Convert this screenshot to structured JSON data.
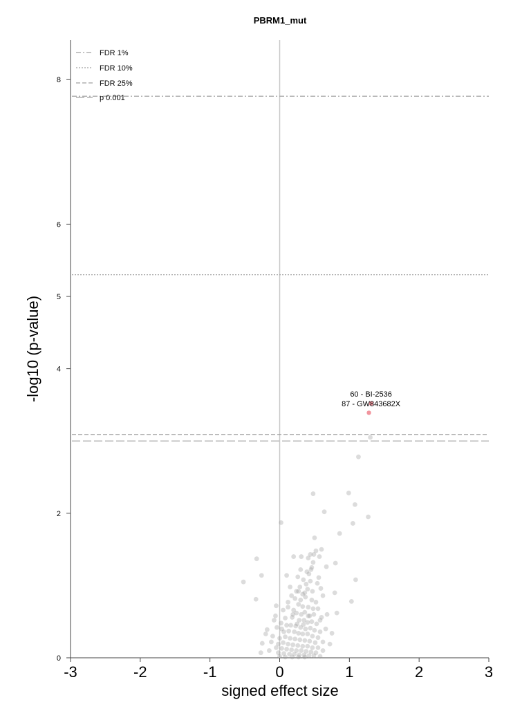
{
  "chart_data": {
    "type": "scatter",
    "title": "PBRM1_mut",
    "xlabel": "signed effect size",
    "ylabel": "-log10 (p-value)",
    "xlim": [
      -3,
      3
    ],
    "ylim": [
      0,
      8.6
    ],
    "xticks": [
      "-3",
      "-2",
      "-1",
      "0",
      "1",
      "2",
      "3"
    ],
    "yticks": [
      "0",
      "2",
      "4",
      "5",
      "6",
      "8"
    ],
    "legend_position": "top-left",
    "thresholds": [
      {
        "label": "FDR 1%",
        "y": 7.77,
        "style": "dashdot"
      },
      {
        "label": "FDR 10%",
        "y": 5.3,
        "style": "dotted"
      },
      {
        "label": "FDR 25%",
        "y": 3.09,
        "style": "dashed"
      },
      {
        "label": "p 0.001",
        "y": 3.0,
        "style": "longdash"
      }
    ],
    "highlighted_points": [
      {
        "x": 1.31,
        "y": 3.52,
        "label": "60 - BI-2536"
      },
      {
        "x": 1.28,
        "y": 3.39,
        "label": "87 - GW843682X"
      }
    ],
    "points": [
      [
        1.3,
        3.05
      ],
      [
        1.13,
        2.78
      ],
      [
        0.48,
        2.27
      ],
      [
        0.99,
        2.28
      ],
      [
        1.08,
        2.12
      ],
      [
        0.64,
        2.02
      ],
      [
        1.27,
        1.95
      ],
      [
        0.02,
        1.87
      ],
      [
        1.05,
        1.86
      ],
      [
        0.86,
        1.72
      ],
      [
        0.5,
        1.66
      ],
      [
        -0.33,
        1.37
      ],
      [
        0.49,
        1.43
      ],
      [
        0.52,
        1.48
      ],
      [
        0.6,
        1.5
      ],
      [
        0.44,
        1.43
      ],
      [
        0.2,
        1.4
      ],
      [
        0.31,
        1.4
      ],
      [
        0.41,
        1.38
      ],
      [
        0.48,
        1.32
      ],
      [
        0.57,
        1.4
      ],
      [
        0.8,
        1.31
      ],
      [
        0.67,
        1.26
      ],
      [
        0.45,
        1.22
      ],
      [
        0.1,
        1.14
      ],
      [
        -0.26,
        1.14
      ],
      [
        1.09,
        1.08
      ],
      [
        -0.52,
        1.05
      ],
      [
        0.26,
        1.12
      ],
      [
        0.34,
        1.08
      ],
      [
        0.38,
        1.02
      ],
      [
        0.44,
        1.06
      ],
      [
        0.54,
        1.03
      ],
      [
        0.29,
        0.98
      ],
      [
        0.4,
        0.95
      ],
      [
        0.47,
        0.92
      ],
      [
        0.59,
        0.96
      ],
      [
        0.79,
        0.9
      ],
      [
        0.62,
        0.86
      ],
      [
        0.17,
        0.86
      ],
      [
        0.22,
        0.82
      ],
      [
        0.3,
        0.8
      ],
      [
        0.37,
        0.84
      ],
      [
        0.46,
        0.8
      ],
      [
        0.52,
        0.77
      ],
      [
        -0.34,
        0.81
      ],
      [
        1.03,
        0.78
      ],
      [
        0.12,
        0.77
      ],
      [
        0.27,
        0.74
      ],
      [
        0.33,
        0.71
      ],
      [
        0.41,
        0.7
      ],
      [
        0.55,
        0.68
      ],
      [
        0.2,
        0.66
      ],
      [
        -0.05,
        0.72
      ],
      [
        0.05,
        0.66
      ],
      [
        0.24,
        0.62
      ],
      [
        0.31,
        0.6
      ],
      [
        0.36,
        0.63
      ],
      [
        0.43,
        0.58
      ],
      [
        0.49,
        0.6
      ],
      [
        0.6,
        0.56
      ],
      [
        0.68,
        0.6
      ],
      [
        0.82,
        0.62
      ],
      [
        0.18,
        0.56
      ],
      [
        0.28,
        0.52
      ],
      [
        0.35,
        0.52
      ],
      [
        0.4,
        0.49
      ],
      [
        0.46,
        0.5
      ],
      [
        0.53,
        0.47
      ],
      [
        -0.08,
        0.52
      ],
      [
        0.02,
        0.48
      ],
      [
        0.1,
        0.45
      ],
      [
        0.16,
        0.45
      ],
      [
        0.23,
        0.44
      ],
      [
        0.3,
        0.42
      ],
      [
        0.37,
        0.4
      ],
      [
        0.44,
        0.41
      ],
      [
        0.5,
        0.38
      ],
      [
        0.58,
        0.36
      ],
      [
        0.66,
        0.4
      ],
      [
        0.75,
        0.34
      ],
      [
        -0.18,
        0.39
      ],
      [
        -0.04,
        0.42
      ],
      [
        0.06,
        0.36
      ],
      [
        0.13,
        0.37
      ],
      [
        0.21,
        0.36
      ],
      [
        0.27,
        0.34
      ],
      [
        0.33,
        0.33
      ],
      [
        0.4,
        0.33
      ],
      [
        0.47,
        0.3
      ],
      [
        0.55,
        0.28
      ],
      [
        -0.2,
        0.33
      ],
      [
        -0.1,
        0.3
      ],
      [
        0.0,
        0.27
      ],
      [
        0.08,
        0.29
      ],
      [
        0.15,
        0.27
      ],
      [
        0.22,
        0.26
      ],
      [
        0.29,
        0.25
      ],
      [
        0.36,
        0.24
      ],
      [
        0.43,
        0.23
      ],
      [
        0.51,
        0.21
      ],
      [
        0.62,
        0.22
      ],
      [
        0.72,
        0.19
      ],
      [
        -0.25,
        0.2
      ],
      [
        -0.12,
        0.22
      ],
      [
        -0.02,
        0.19
      ],
      [
        0.05,
        0.21
      ],
      [
        0.12,
        0.19
      ],
      [
        0.19,
        0.18
      ],
      [
        0.26,
        0.17
      ],
      [
        0.33,
        0.16
      ],
      [
        0.4,
        0.16
      ],
      [
        0.47,
        0.14
      ],
      [
        0.55,
        0.14
      ],
      [
        -0.05,
        0.14
      ],
      [
        0.03,
        0.13
      ],
      [
        0.1,
        0.12
      ],
      [
        0.17,
        0.11
      ],
      [
        0.24,
        0.1
      ],
      [
        0.31,
        0.1
      ],
      [
        0.38,
        0.09
      ],
      [
        0.45,
        0.08
      ],
      [
        0.52,
        0.07
      ],
      [
        0.62,
        0.1
      ],
      [
        -0.27,
        0.07
      ],
      [
        -0.15,
        0.1
      ],
      [
        -0.02,
        0.07
      ],
      [
        0.06,
        0.06
      ],
      [
        0.14,
        0.05
      ],
      [
        0.21,
        0.05
      ],
      [
        0.28,
        0.04
      ],
      [
        0.35,
        0.04
      ],
      [
        0.42,
        0.03
      ],
      [
        0.49,
        0.03
      ],
      [
        0.58,
        0.02
      ],
      [
        0.08,
        0.01
      ],
      [
        0.18,
        0.01
      ],
      [
        0.27,
        0.01
      ],
      [
        0.36,
        0.01
      ],
      [
        0.0,
        0.02
      ],
      [
        0.24,
        0.92
      ],
      [
        0.36,
        0.9
      ],
      [
        0.15,
        0.98
      ],
      [
        0.42,
        1.16
      ],
      [
        0.46,
        1.25
      ],
      [
        0.39,
        1.19
      ],
      [
        0.3,
        1.22
      ],
      [
        0.56,
        1.11
      ],
      [
        0.33,
        0.88
      ],
      [
        0.12,
        0.7
      ],
      [
        0.08,
        0.55
      ],
      [
        0.19,
        0.6
      ],
      [
        0.03,
        0.4
      ],
      [
        -0.06,
        0.58
      ],
      [
        0.25,
        0.47
      ],
      [
        0.41,
        0.58
      ],
      [
        0.58,
        0.52
      ],
      [
        0.34,
        0.46
      ],
      [
        0.48,
        0.68
      ],
      [
        0.27,
        0.92
      ]
    ]
  }
}
